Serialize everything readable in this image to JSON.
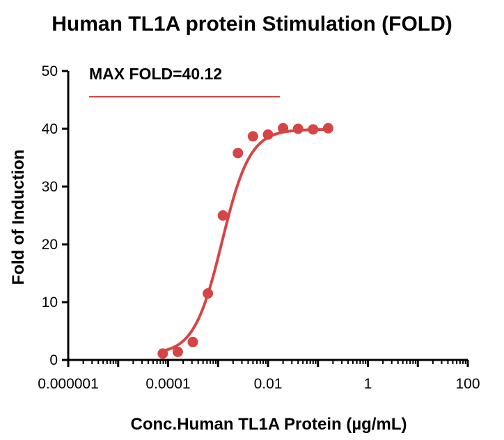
{
  "colors": {
    "series": "#D64545",
    "axis": "#000000",
    "annotation_line": "#D64545"
  },
  "chart_data": {
    "type": "scatter",
    "title": "Human TL1A protein Stimulation (FOLD)",
    "xlabel": "Conc.Human TL1A Protein (µg/mL)",
    "ylabel": "Fold of Induction",
    "x_scale": "log",
    "xlim": [
      1e-06,
      100
    ],
    "ylim": [
      0,
      50
    ],
    "x_ticks": [
      1e-06,
      0.0001,
      0.01,
      1,
      100
    ],
    "x_tick_labels": [
      "0.000001",
      "0.0001",
      "0.01",
      "1",
      "100"
    ],
    "y_ticks": [
      0,
      10,
      20,
      30,
      40,
      50
    ],
    "y_tick_labels": [
      "0",
      "10",
      "20",
      "30",
      "40",
      "50"
    ],
    "annotation": "MAX FOLD=40.12",
    "grid": false,
    "series": [
      {
        "x": [
          7.813e-05,
          0.00015625,
          0.0003125,
          0.000625,
          0.00125,
          0.0025,
          0.005,
          0.01,
          0.02,
          0.04,
          0.08,
          0.16
        ],
        "values": [
          1.1,
          1.4,
          3.1,
          11.5,
          25.0,
          35.8,
          38.7,
          39.0,
          40.1,
          40.0,
          39.9,
          40.1
        ],
        "fit": "four-parameter logistic sigmoid"
      }
    ]
  }
}
